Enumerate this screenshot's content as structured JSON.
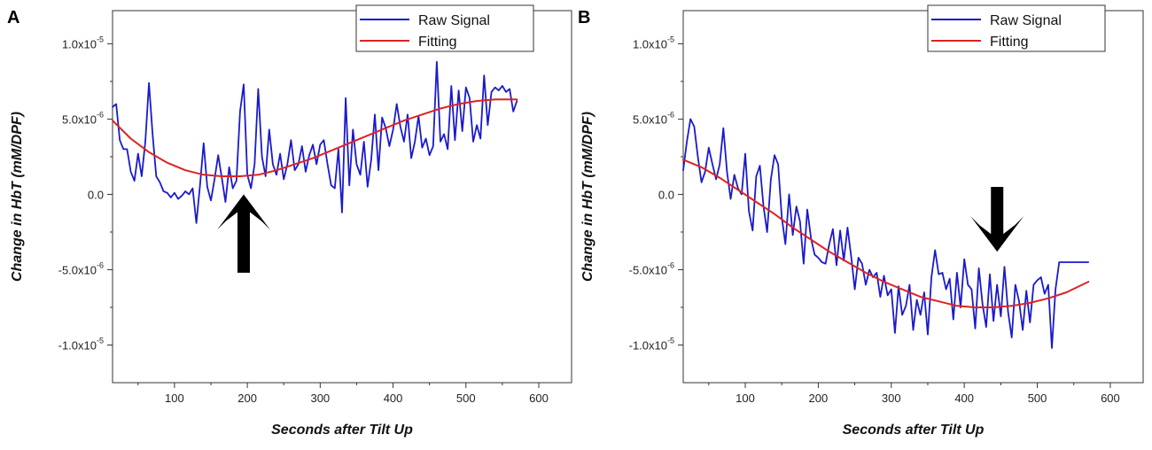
{
  "chart_data": [
    {
      "type": "line",
      "panel_label": "A",
      "xlabel": "Seconds after Tilt Up",
      "ylabel": "Change in HbT (mM/DPF)",
      "xlim": [
        15,
        645
      ],
      "ylim": [
        -1.25e-05,
        1.22e-05
      ],
      "xticks": [
        100,
        200,
        300,
        400,
        500,
        600
      ],
      "xtick_labels": [
        "100",
        "200",
        "300",
        "400",
        "500",
        "600"
      ],
      "yticks": [
        1e-05,
        5e-06,
        0,
        -5e-06,
        -1e-05
      ],
      "ytick_labels": [
        {
          "mantissa": "1.0x10",
          "exp": "-5"
        },
        {
          "mantissa": "5.0x10",
          "exp": "-6"
        },
        {
          "mantissa": "0.0",
          "exp": ""
        },
        {
          "mantissa": "-5.0x10",
          "exp": "-6"
        },
        {
          "mantissa": "-1.0x10",
          "exp": "-5"
        }
      ],
      "legend": {
        "position": "top-right",
        "entries": [
          "Raw Signal",
          "Fitting"
        ]
      },
      "colors": {
        "raw": "#1a1acc",
        "fit": "#dd2222"
      },
      "annotation": {
        "type": "arrow",
        "direction": "up",
        "x": 195,
        "y_tip": 0.0,
        "y_tail": -5.2e-06
      },
      "series": [
        {
          "name": "Raw Signal",
          "x": [
            15,
            20,
            25,
            30,
            35,
            40,
            45,
            50,
            55,
            60,
            65,
            70,
            75,
            80,
            85,
            90,
            95,
            100,
            105,
            110,
            115,
            120,
            125,
            130,
            135,
            140,
            145,
            150,
            155,
            160,
            165,
            170,
            175,
            180,
            185,
            190,
            195,
            200,
            205,
            210,
            215,
            220,
            225,
            230,
            235,
            240,
            245,
            250,
            255,
            260,
            265,
            270,
            275,
            280,
            285,
            290,
            295,
            300,
            305,
            310,
            315,
            320,
            325,
            330,
            335,
            340,
            345,
            350,
            355,
            360,
            365,
            370,
            375,
            380,
            385,
            390,
            395,
            400,
            405,
            410,
            415,
            420,
            425,
            430,
            435,
            440,
            445,
            450,
            455,
            460,
            465,
            470,
            475,
            480,
            485,
            490,
            495,
            500,
            505,
            510,
            515,
            520,
            525,
            530,
            535,
            540,
            545,
            550,
            555,
            560,
            565,
            570
          ],
          "values": [
            5.8e-06,
            6e-06,
            3.6e-06,
            3e-06,
            3e-06,
            1.5e-06,
            9e-07,
            2.7e-06,
            1.2e-06,
            3.5e-06,
            7.4e-06,
            4e-06,
            1.2e-06,
            8e-07,
            2e-07,
            1e-07,
            -2e-07,
            1e-07,
            -3e-07,
            -1e-07,
            2e-07,
            0.0,
            4e-07,
            -1.9e-06,
            6e-07,
            3.4e-06,
            5e-07,
            -4e-07,
            1e-06,
            2.6e-06,
            1.1e-06,
            -5e-07,
            1.8e-06,
            4e-07,
            9e-07,
            5.5e-06,
            7.3e-06,
            1.3e-06,
            4e-07,
            2e-06,
            7e-06,
            2.5e-06,
            1.2e-06,
            4.3e-06,
            2e-06,
            1.3e-06,
            2.7e-06,
            1e-06,
            2e-06,
            3.6e-06,
            1.6e-06,
            2e-06,
            3.2e-06,
            1.5e-06,
            2.6e-06,
            3.3e-06,
            2e-06,
            3.3e-06,
            3.6e-06,
            2e-06,
            6e-07,
            4e-07,
            3e-06,
            -1.2e-06,
            6.4e-06,
            6e-07,
            4.3e-06,
            2e-06,
            1.3e-06,
            3.5e-06,
            5e-07,
            2.3e-06,
            5.3e-06,
            1.6e-06,
            5.1e-06,
            4.4e-06,
            3.2e-06,
            4.3e-06,
            6e-06,
            4.5e-06,
            3.5e-06,
            5.3e-06,
            2.4e-06,
            3.5e-06,
            5.2e-06,
            3.1e-06,
            3.7e-06,
            2.6e-06,
            3.2e-06,
            8.8e-06,
            3.5e-06,
            4e-06,
            3e-06,
            7.2e-06,
            3.6e-06,
            6.9e-06,
            4.2e-06,
            7.1e-06,
            6.4e-06,
            3.5e-06,
            4.6e-06,
            3.7e-06,
            7.9e-06,
            4.6e-06,
            6.8e-06,
            7.1e-06,
            6.9e-06,
            7.2e-06,
            6.8e-06,
            7e-06,
            5.5e-06,
            6.2e-06
          ]
        },
        {
          "name": "Fitting",
          "x": [
            15,
            40,
            65,
            90,
            115,
            140,
            165,
            190,
            215,
            240,
            265,
            290,
            315,
            340,
            365,
            390,
            415,
            440,
            465,
            490,
            515,
            540,
            570
          ],
          "values": [
            4.9e-06,
            3.7e-06,
            2.8e-06,
            2.1e-06,
            1.6e-06,
            1.3e-06,
            1.2e-06,
            1.2e-06,
            1.3e-06,
            1.6e-06,
            2e-06,
            2.4e-06,
            2.9e-06,
            3.4e-06,
            3.9e-06,
            4.4e-06,
            4.9e-06,
            5.3e-06,
            5.7e-06,
            6e-06,
            6.2e-06,
            6.3e-06,
            6.3e-06
          ]
        }
      ]
    },
    {
      "type": "line",
      "panel_label": "B",
      "xlabel": "Seconds after Tilt Up",
      "ylabel": "Change in HbT (mM/DPF)",
      "xlim": [
        15,
        645
      ],
      "ylim": [
        -1.25e-05,
        1.22e-05
      ],
      "xticks": [
        100,
        200,
        300,
        400,
        500,
        600
      ],
      "xtick_labels": [
        "100",
        "200",
        "300",
        "400",
        "500",
        "600"
      ],
      "yticks": [
        1e-05,
        5e-06,
        0,
        -5e-06,
        -1e-05
      ],
      "ytick_labels": [
        {
          "mantissa": "1.0x10",
          "exp": "-5"
        },
        {
          "mantissa": "5.0x10",
          "exp": "-6"
        },
        {
          "mantissa": "0.0",
          "exp": ""
        },
        {
          "mantissa": "-5.0x10",
          "exp": "-6"
        },
        {
          "mantissa": "-1.0x10",
          "exp": "-5"
        }
      ],
      "legend": {
        "position": "top-right",
        "entries": [
          "Raw Signal",
          "Fitting"
        ]
      },
      "colors": {
        "raw": "#1a1acc",
        "fit": "#dd2222"
      },
      "annotation": {
        "type": "arrow",
        "direction": "down",
        "x": 445,
        "y_tip": -3.8e-06,
        "y_tail": 5e-07
      },
      "series": [
        {
          "name": "Raw Signal",
          "x": [
            15,
            20,
            25,
            30,
            35,
            40,
            45,
            50,
            55,
            60,
            65,
            70,
            75,
            80,
            85,
            90,
            95,
            100,
            105,
            110,
            115,
            120,
            125,
            130,
            135,
            140,
            145,
            150,
            155,
            160,
            165,
            170,
            175,
            180,
            185,
            190,
            195,
            200,
            205,
            210,
            215,
            220,
            225,
            230,
            235,
            240,
            245,
            250,
            255,
            260,
            265,
            270,
            275,
            280,
            285,
            290,
            295,
            300,
            305,
            310,
            315,
            320,
            325,
            330,
            335,
            340,
            345,
            350,
            355,
            360,
            365,
            370,
            375,
            380,
            385,
            390,
            395,
            400,
            405,
            410,
            415,
            420,
            425,
            430,
            435,
            440,
            445,
            450,
            455,
            460,
            465,
            470,
            475,
            480,
            485,
            490,
            495,
            500,
            505,
            510,
            515,
            520,
            525,
            530,
            535,
            540,
            545,
            550,
            555,
            560,
            565,
            570
          ],
          "values": [
            1.6e-06,
            3.5e-06,
            5e-06,
            4.5e-06,
            2.5e-06,
            8e-07,
            1.5e-06,
            3.1e-06,
            2e-06,
            1e-06,
            2e-06,
            4.4e-06,
            1.5e-06,
            -3e-07,
            1.3e-06,
            4e-07,
            0.0,
            2.7e-06,
            -1.1e-06,
            -2.4e-06,
            1.2e-06,
            1.9e-06,
            -8e-07,
            -2.5e-06,
            1e-06,
            2.6e-06,
            2e-06,
            -1.5e-06,
            -3.3e-06,
            0.0,
            -2.7e-06,
            -8e-07,
            -1.8e-06,
            -4.6e-06,
            -1e-06,
            -2.9e-06,
            -4e-06,
            -4.2e-06,
            -4.5e-06,
            -4.6e-06,
            -3.3e-06,
            -2.3e-06,
            -4.7e-06,
            -2.4e-06,
            -4.4e-06,
            -2.2e-06,
            -4.1e-06,
            -6.3e-06,
            -4.2e-06,
            -4.6e-06,
            -6e-06,
            -5e-06,
            -5.5e-06,
            -5.2e-06,
            -6.8e-06,
            -5.4e-06,
            -6.7e-06,
            -6.3e-06,
            -9.2e-06,
            -6.1e-06,
            -8e-06,
            -7.4e-06,
            -6e-06,
            -9e-06,
            -7e-06,
            -8e-06,
            -6.5e-06,
            -9.3e-06,
            -5.5e-06,
            -3.7e-06,
            -5.3e-06,
            -5.2e-06,
            -6.3e-06,
            -5.6e-06,
            -8.3e-06,
            -5.2e-06,
            -7.5e-06,
            -4.3e-06,
            -6e-06,
            -6.3e-06,
            -8.9e-06,
            -4.9e-06,
            -7.3e-06,
            -8.8e-06,
            -5.3e-06,
            -8.4e-06,
            -6e-06,
            -8.1e-06,
            -4.8e-06,
            -7.8e-06,
            -9.5e-06,
            -6e-06,
            -7.1e-06,
            -9e-06,
            -6.4e-06,
            -8.5e-06,
            -6e-06,
            -5.7e-06,
            -5.5e-06,
            -6.6e-06,
            -6e-06,
            -1.02e-05,
            -6.3e-06,
            -4.5e-06,
            -4.5e-06,
            -4.5e-06,
            -4.5e-06,
            -4.5e-06,
            -4.5e-06,
            -4.5e-06,
            -4.5e-06,
            -4.5e-06
          ]
        },
        {
          "name": "Fitting",
          "x": [
            15,
            40,
            65,
            90,
            115,
            140,
            165,
            190,
            215,
            240,
            265,
            290,
            315,
            340,
            365,
            390,
            415,
            440,
            465,
            490,
            515,
            540,
            570
          ],
          "values": [
            2.3e-06,
            1.8e-06,
            1.1e-06,
            3e-07,
            -5e-07,
            -1.3e-06,
            -2.2e-06,
            -3e-06,
            -3.8e-06,
            -4.5e-06,
            -5.2e-06,
            -5.8e-06,
            -6.3e-06,
            -6.8e-06,
            -7.1e-06,
            -7.4e-06,
            -7.5e-06,
            -7.5e-06,
            -7.4e-06,
            -7.2e-06,
            -6.9e-06,
            -6.5e-06,
            -5.8e-06
          ]
        }
      ]
    }
  ]
}
